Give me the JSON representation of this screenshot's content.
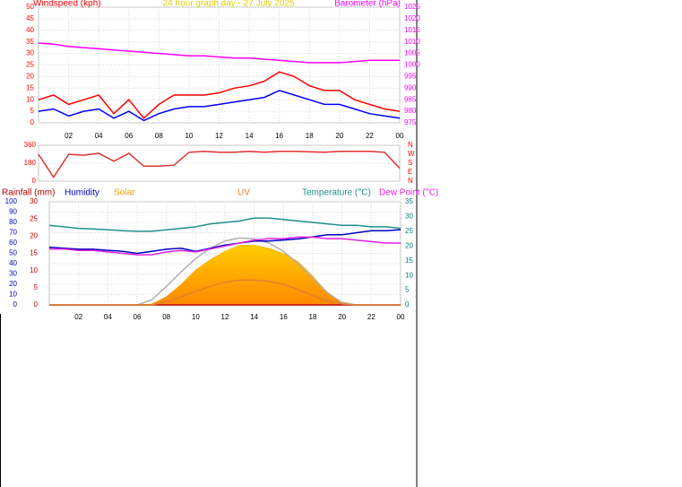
{
  "chart_data": [
    {
      "type": "line",
      "title": "24 hour graph day - 27 July 2025",
      "title_color": "#e0d000",
      "y_label": "Windspeed (kph)",
      "y_color": "#ff0000",
      "y2_label": "Barometer (hPa)",
      "y2_color": "#ff00ff",
      "x": [
        0,
        1,
        2,
        3,
        4,
        5,
        6,
        7,
        8,
        9,
        10,
        11,
        12,
        13,
        14,
        15,
        16,
        17,
        18,
        19,
        20,
        21,
        22,
        23,
        24
      ],
      "xlim": [
        0,
        24
      ],
      "xticks": [
        {
          "value": 2,
          "label": "02"
        },
        {
          "value": 4,
          "label": "04"
        },
        {
          "value": 6,
          "label": "06"
        },
        {
          "value": 8,
          "label": "08"
        },
        10,
        12,
        14,
        16,
        18,
        20,
        22,
        {
          "value": 24,
          "label": "00"
        }
      ],
      "ylim": [
        0,
        50
      ],
      "yticks": [
        0,
        5,
        10,
        15,
        20,
        25,
        30,
        35,
        40,
        45,
        50
      ],
      "y2lim": [
        975,
        1025
      ],
      "y2ticks": [
        975,
        980,
        985,
        990,
        995,
        1000,
        1005,
        1010,
        1015,
        1020,
        1025
      ],
      "grid": true,
      "series": [
        {
          "color": "#ff0000",
          "values": [
            10,
            12,
            8,
            10,
            12,
            4,
            10,
            2,
            8,
            12,
            12,
            12,
            13,
            15,
            16,
            18,
            22,
            20,
            16,
            14,
            14,
            10,
            8,
            6,
            5
          ]
        },
        {
          "color": "#0000ff",
          "values": [
            5,
            6,
            3,
            5,
            6,
            2,
            5,
            1,
            4,
            6,
            7,
            7,
            8,
            9,
            10,
            11,
            14,
            12,
            10,
            8,
            8,
            6,
            4,
            3,
            2
          ]
        },
        {
          "color": "#ff00ff",
          "axis": "y2",
          "values": [
            1009.5,
            1009,
            1008,
            1007.5,
            1007,
            1006.5,
            1006,
            1005.5,
            1005,
            1004.5,
            1004,
            1004,
            1003.5,
            1003,
            1003,
            1002.5,
            1002,
            1001.5,
            1001,
            1001,
            1001,
            1001.5,
            1002,
            1002,
            1002
          ]
        }
      ]
    },
    {
      "type": "line",
      "y_color": "#ff0000",
      "y2_color": "#ff0000",
      "x": [
        0,
        1,
        2,
        3,
        4,
        5,
        6,
        7,
        8,
        9,
        10,
        11,
        12,
        13,
        14,
        15,
        16,
        17,
        18,
        19,
        20,
        21,
        22,
        23,
        24
      ],
      "xlim": [
        0,
        24
      ],
      "ylim": [
        0,
        360
      ],
      "yticks": [
        0,
        180,
        360
      ],
      "y2lim": [
        0,
        360
      ],
      "y2ticks": [
        {
          "value": 0,
          "label": "N"
        },
        {
          "value": 90,
          "label": "E"
        },
        {
          "value": 180,
          "label": "S"
        },
        {
          "value": 270,
          "label": "W"
        },
        {
          "value": 360,
          "label": "N"
        }
      ],
      "grid": true,
      "series": [
        {
          "color": "#e03030",
          "values": [
            270,
            40,
            270,
            260,
            280,
            200,
            280,
            150,
            150,
            160,
            290,
            300,
            290,
            290,
            300,
            290,
            300,
            300,
            295,
            290,
            300,
            300,
            300,
            290,
            130
          ]
        }
      ]
    },
    {
      "type": "line",
      "x": [
        0,
        1,
        2,
        3,
        4,
        5,
        6,
        7,
        8,
        9,
        10,
        11,
        12,
        13,
        14,
        15,
        16,
        17,
        18,
        19,
        20,
        21,
        22,
        23,
        24
      ],
      "xlim": [
        0,
        24
      ],
      "xticks": [
        {
          "value": 2,
          "label": "02"
        },
        {
          "value": 4,
          "label": "04"
        },
        {
          "value": 6,
          "label": "06"
        },
        {
          "value": 8,
          "label": "08"
        },
        10,
        12,
        14,
        16,
        18,
        20,
        22,
        {
          "value": 24,
          "label": "00"
        }
      ],
      "ylim": [
        0,
        100
      ],
      "yticks": [
        0,
        10,
        20,
        30,
        40,
        50,
        60,
        70,
        80,
        90,
        100
      ],
      "y_color": "#0000c0",
      "y3lim": [
        0,
        30
      ],
      "y3ticks": [
        0,
        5,
        10,
        15,
        20,
        25,
        30
      ],
      "y3_color": "#c00000",
      "y2lim": [
        0,
        35
      ],
      "y2ticks": [
        0,
        5,
        10,
        15,
        20,
        25,
        30,
        35
      ],
      "y2_color": "#008080",
      "grid": true,
      "series": [
        {
          "name": "Rainfall (mm)",
          "color": "#c00000",
          "axis": "y3",
          "values": [
            0,
            0,
            0,
            0,
            0,
            0,
            0,
            0,
            0,
            0,
            0,
            0,
            0,
            0,
            0,
            0,
            0,
            0,
            0,
            0,
            0,
            0,
            0,
            0,
            0
          ]
        },
        {
          "name": "Humidity",
          "color": "#0000c0",
          "values": [
            56,
            55,
            54,
            54,
            53,
            52,
            50,
            52,
            54,
            55,
            52,
            55,
            58,
            60,
            62,
            62,
            63,
            64,
            66,
            68,
            68,
            70,
            72,
            72,
            73
          ]
        },
        {
          "name": "Solar",
          "color": "#f0a000",
          "fill": true,
          "values": [
            0,
            0,
            0,
            0,
            0,
            0,
            0,
            1,
            8,
            20,
            34,
            44,
            52,
            58,
            58,
            55,
            50,
            42,
            28,
            12,
            3,
            0,
            0,
            0,
            0
          ]
        },
        {
          "name": "UV",
          "color": "#e08030",
          "values": [
            0,
            0,
            0,
            0,
            0,
            0,
            0,
            0,
            3,
            8,
            13,
            18,
            22,
            24,
            24,
            23,
            20,
            15,
            9,
            4,
            1,
            0,
            0,
            0,
            0
          ]
        },
        {
          "name": "Temperature (°C)",
          "color": "#20908a",
          "axis": "y2",
          "values": [
            27,
            26.5,
            26,
            25.8,
            25.5,
            25.2,
            25,
            25,
            25.5,
            26,
            26.5,
            27.5,
            28,
            28.5,
            29.5,
            29.5,
            29,
            28.5,
            28,
            27.5,
            27,
            27,
            26.5,
            26.5,
            26
          ]
        },
        {
          "name": "Dew Point (°C)",
          "color": "#e020e0",
          "axis": "y2",
          "values": [
            19,
            19,
            18.5,
            18.5,
            18,
            17.5,
            17,
            17,
            18,
            18.5,
            18,
            19,
            20,
            21,
            22,
            22.5,
            22.5,
            23,
            23,
            22.5,
            22.5,
            22,
            21.5,
            21,
            21
          ]
        },
        {
          "color": "#b0b0b0",
          "values": [
            0,
            0,
            0,
            0,
            0,
            0,
            0,
            5,
            18,
            32,
            45,
            55,
            62,
            65,
            64,
            60,
            52,
            40,
            26,
            12,
            2,
            0,
            0,
            0,
            0
          ]
        }
      ]
    }
  ]
}
